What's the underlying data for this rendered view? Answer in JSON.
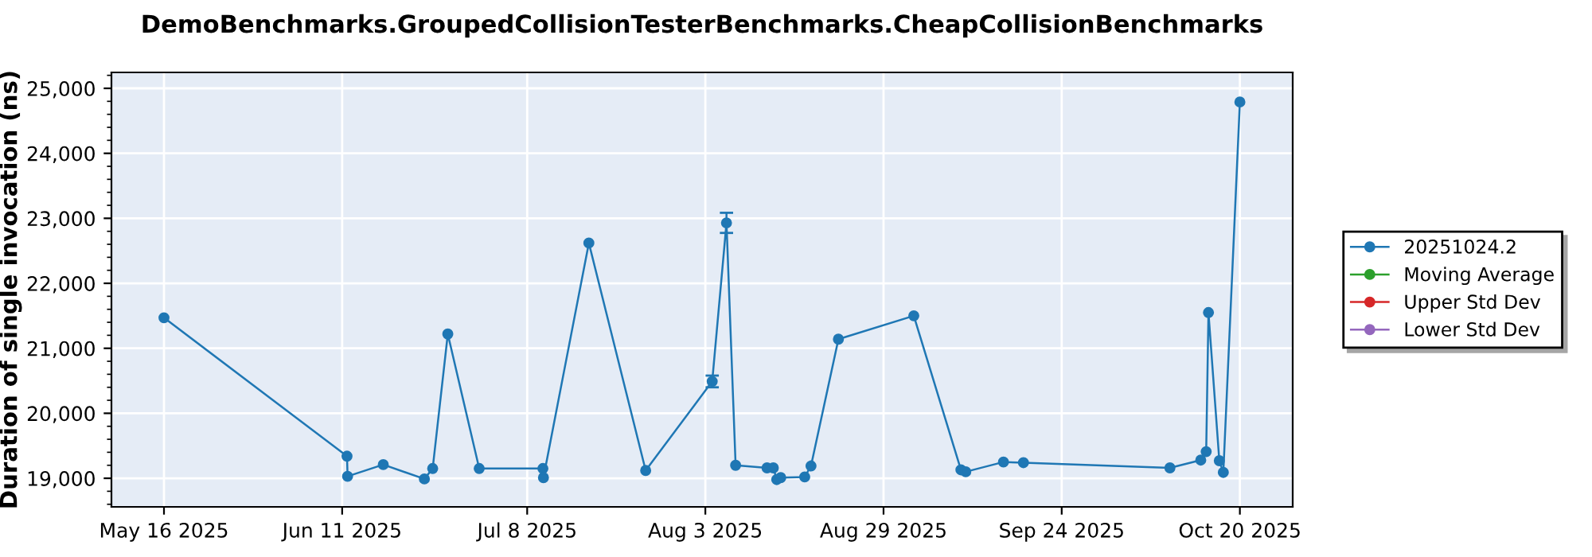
{
  "chart_data": {
    "type": "line",
    "title": "DemoBenchmarks.GroupedCollisionTesterBenchmarks.CheapCollisionBenchmarks",
    "ylabel": "Duration of single invocation (ns)",
    "x": [
      "2025-05-16",
      "2025-06-11T17:00",
      "2025-06-11T19:00",
      "2025-06-17",
      "2025-06-23",
      "2025-06-24T05:00",
      "2025-06-26T10:00",
      "2025-07-01",
      "2025-07-10T07:00",
      "2025-07-10T09:00",
      "2025-07-17",
      "2025-07-25T07:00",
      "2025-08-04",
      "2025-08-06T02:00",
      "2025-08-07T10:00",
      "2025-08-12",
      "2025-08-12T22:00",
      "2025-08-13T10:00",
      "2025-08-14",
      "2025-08-17T12:00",
      "2025-08-18T10:00",
      "2025-08-22T10:00",
      "2025-09-02T10:00",
      "2025-09-09T07:00",
      "2025-09-10",
      "2025-09-15T12:00",
      "2025-09-18T10:00",
      "2025-10-09T19:00",
      "2025-10-14T07:00",
      "2025-10-15T02:00",
      "2025-10-15T10:00",
      "2025-10-17",
      "2025-10-17T14:00",
      "2025-10-20"
    ],
    "series": [
      {
        "name": "20251024.2",
        "color": "#1f77b4",
        "values": [
          21470,
          19340,
          19030,
          19210,
          18990,
          19150,
          21220,
          19150,
          19150,
          19010,
          22620,
          19120,
          20490,
          22930,
          19200,
          19160,
          19160,
          18980,
          19010,
          19020,
          19190,
          21140,
          21500,
          19130,
          19100,
          19250,
          19240,
          19160,
          19280,
          19410,
          21550,
          19270,
          19090,
          24790
        ],
        "errors": [
          null,
          null,
          null,
          null,
          null,
          null,
          null,
          null,
          null,
          null,
          null,
          null,
          90,
          155,
          null,
          null,
          null,
          null,
          null,
          null,
          null,
          null,
          null,
          null,
          null,
          null,
          null,
          null,
          null,
          null,
          null,
          null,
          null,
          null
        ]
      },
      {
        "name": "Moving Average",
        "color": "#2ca02c",
        "values": [
          null,
          null,
          null,
          null,
          null,
          null,
          null,
          null,
          null,
          null,
          null,
          null,
          null,
          null,
          null,
          null,
          null,
          null,
          null,
          null,
          null,
          null,
          null,
          null,
          null,
          null,
          null,
          null,
          null,
          null,
          null,
          null,
          null,
          null
        ]
      },
      {
        "name": "Upper Std Dev",
        "color": "#d62728",
        "values": [
          null,
          null,
          null,
          null,
          null,
          null,
          null,
          null,
          null,
          null,
          null,
          null,
          null,
          null,
          null,
          null,
          null,
          null,
          null,
          null,
          null,
          null,
          null,
          null,
          null,
          null,
          null,
          null,
          null,
          null,
          null,
          null,
          null,
          null
        ]
      },
      {
        "name": "Lower Std Dev",
        "color": "#9467bd",
        "values": [
          null,
          null,
          null,
          null,
          null,
          null,
          null,
          null,
          null,
          null,
          null,
          null,
          null,
          null,
          null,
          null,
          null,
          null,
          null,
          null,
          null,
          null,
          null,
          null,
          null,
          null,
          null,
          null,
          null,
          null,
          null,
          null,
          null,
          null
        ]
      }
    ],
    "xlim": [
      "2025-05-08T08:00",
      "2025-10-27T17:00"
    ],
    "xticks": [
      {
        "value": "2025-05-16",
        "label": "May 16 2025"
      },
      {
        "value": "2025-06-11",
        "label": "Jun 11 2025"
      },
      {
        "value": "2025-07-08",
        "label": "Jul 8 2025"
      },
      {
        "value": "2025-08-03",
        "label": "Aug 3 2025"
      },
      {
        "value": "2025-08-29",
        "label": "Aug 29 2025"
      },
      {
        "value": "2025-09-24",
        "label": "Sep 24 2025"
      },
      {
        "value": "2025-10-20",
        "label": "Oct 20 2025"
      }
    ],
    "ylim": [
      18560,
      25245
    ],
    "yticks": [
      {
        "value": 19000,
        "label": "19,000"
      },
      {
        "value": 20000,
        "label": "20,000"
      },
      {
        "value": 21000,
        "label": "21,000"
      },
      {
        "value": 22000,
        "label": "22,000"
      },
      {
        "value": 23000,
        "label": "23,000"
      },
      {
        "value": 24000,
        "label": "24,000"
      },
      {
        "value": 25000,
        "label": "25,000"
      }
    ],
    "grid": true,
    "legend": "right",
    "marker": "circle",
    "line_style": "solid"
  }
}
